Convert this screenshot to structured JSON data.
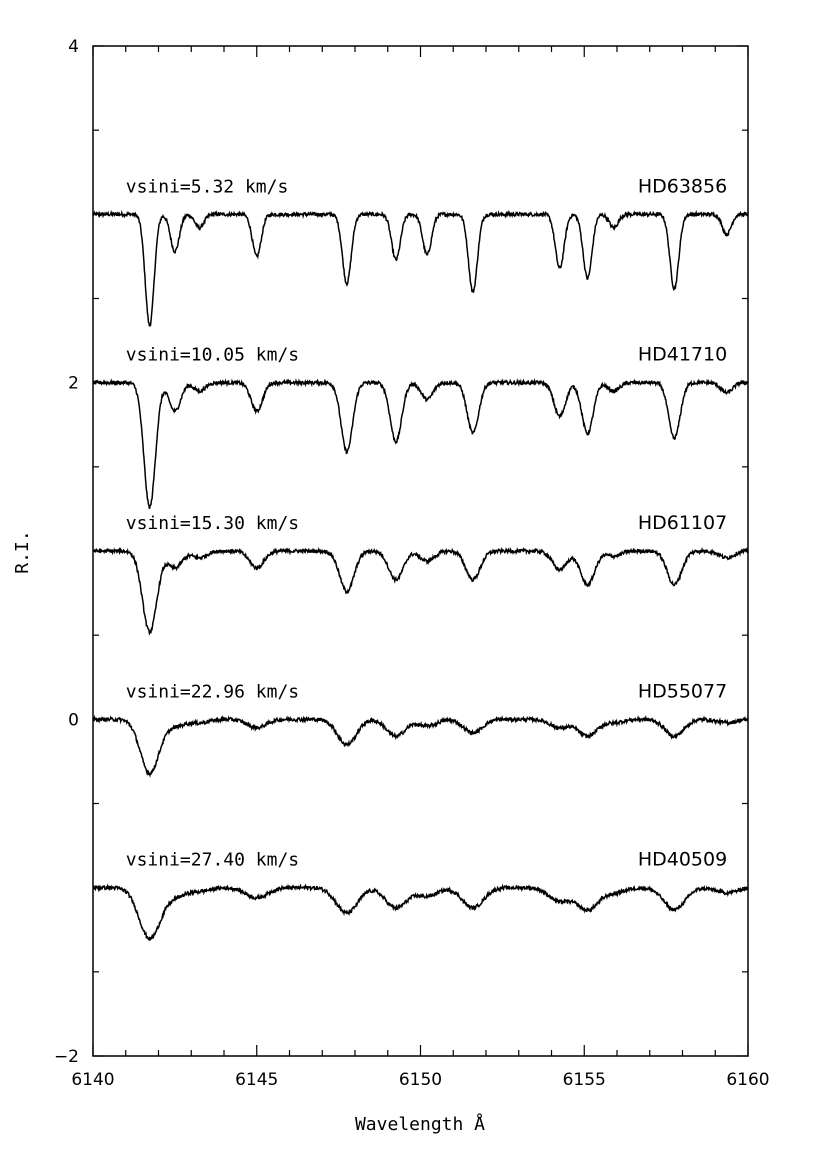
{
  "chart_data": {
    "type": "line",
    "title": "",
    "xlabel": "Wavelength Å",
    "ylabel": "R.I.",
    "xlim": [
      6140,
      6160
    ],
    "ylim": [
      -2,
      4
    ],
    "x_ticks": [
      6140,
      6145,
      6150,
      6155,
      6160
    ],
    "x_tick_labels": [
      "6140",
      "6145",
      "6150",
      "6155",
      "6160"
    ],
    "y_ticks": [
      -2,
      0,
      2,
      4
    ],
    "y_tick_labels": [
      "−2",
      "0",
      "2",
      "4"
    ],
    "grid": false,
    "lines_wavelengths": [
      6141.73,
      6142.5,
      6143.25,
      6145.0,
      6147.75,
      6149.25,
      6150.2,
      6151.6,
      6154.25,
      6155.1,
      6155.9,
      6157.75,
      6159.35
    ],
    "series": [
      {
        "star": "HD63856",
        "vsini_label": "vsini=5.32 km/s",
        "vsini": 5.32,
        "continuum": 3.0,
        "depths": [
          0.66,
          0.22,
          0.08,
          0.25,
          0.41,
          0.27,
          0.24,
          0.46,
          0.32,
          0.38,
          0.08,
          0.44,
          0.12
        ]
      },
      {
        "star": "HD41710",
        "vsini_label": "vsini=10.05 km/s",
        "vsini": 10.05,
        "continuum": 2.0,
        "depths": [
          0.74,
          0.17,
          0.05,
          0.17,
          0.41,
          0.35,
          0.1,
          0.3,
          0.2,
          0.3,
          0.05,
          0.33,
          0.06
        ]
      },
      {
        "star": "HD61107",
        "vsini_label": "vsini=15.30 km/s",
        "vsini": 15.3,
        "continuum": 1.0,
        "depths": [
          0.48,
          0.1,
          0.04,
          0.1,
          0.24,
          0.17,
          0.06,
          0.17,
          0.11,
          0.2,
          0.03,
          0.2,
          0.04
        ]
      },
      {
        "star": "HD55077",
        "vsini_label": "vsini=22.96 km/s",
        "vsini": 22.96,
        "continuum": 0.0,
        "depths": [
          0.32,
          0.04,
          0.02,
          0.05,
          0.15,
          0.1,
          0.04,
          0.08,
          0.05,
          0.1,
          0.02,
          0.1,
          0.02
        ]
      },
      {
        "star": "HD40509",
        "vsini_label": "vsini=27.40 km/s",
        "vsini": 27.4,
        "continuum": -1.0,
        "depths": [
          0.3,
          0.05,
          0.02,
          0.06,
          0.15,
          0.12,
          0.05,
          0.12,
          0.08,
          0.13,
          0.03,
          0.13,
          0.03
        ]
      }
    ],
    "colors": {
      "line": "#000000",
      "axis": "#000000",
      "background": "#ffffff"
    }
  }
}
